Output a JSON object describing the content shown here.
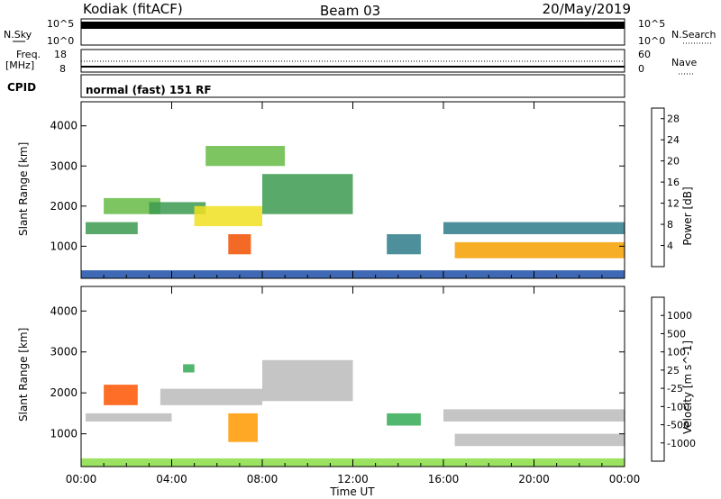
{
  "header": {
    "title": "Kodiak (fitACF)",
    "beam": "Beam 03",
    "date": "20/May/2019"
  },
  "status_panels": {
    "nsky": {
      "label": "N.Sky",
      "left_ticks": [
        "10^5",
        "10^0"
      ],
      "right_label": "N.Search",
      "right_ticks": [
        "10^5",
        "10^0"
      ]
    },
    "freq": {
      "label_line1": "Freq.",
      "label_line2": "[MHz]",
      "left_ticks": [
        "18",
        "8"
      ],
      "right_label": "Nave",
      "right_ticks": [
        "60",
        "0"
      ]
    },
    "cpid": {
      "label": "CPID",
      "value": "normal (fast) 151 RF"
    }
  },
  "colors": {
    "power_scale": [
      "#0000ff",
      "#1e4fa8",
      "#2e7d8a",
      "#3c9a50",
      "#66bb44",
      "#f0e020",
      "#f5a000",
      "#f05000",
      "#e00000"
    ],
    "velocity_scale": [
      "#ff0000",
      "#ff5500",
      "#ff9900",
      "#ffcc00",
      "#bbbbbb",
      "#bbbbbb",
      "#88dd44",
      "#33aa55",
      "#3366aa",
      "#3333cc"
    ]
  },
  "chart_data": [
    {
      "type": "heatmap",
      "title": "Power",
      "ylabel": "Slant Range [km]",
      "xlabel": "Time UT",
      "x_ticks": [
        "00:00",
        "04:00",
        "08:00",
        "12:00",
        "16:00",
        "20:00",
        "00:00"
      ],
      "x_range_hours": [
        0,
        24
      ],
      "y_ticks": [
        1000,
        2000,
        3000,
        4000
      ],
      "ylim": [
        200,
        4600
      ],
      "colorbar": {
        "label": "Power [dB]",
        "ticks": [
          "4",
          "8",
          "12",
          "16",
          "20",
          "24",
          "28"
        ],
        "range": [
          0,
          30
        ]
      },
      "regions": [
        {
          "t0": 0.2,
          "t1": 2.5,
          "r0": 1300,
          "r1": 1600,
          "value": 10
        },
        {
          "t0": 1.0,
          "t1": 3.5,
          "r0": 1800,
          "r1": 2200,
          "value": 16
        },
        {
          "t0": 3.0,
          "t1": 5.5,
          "r0": 1800,
          "r1": 2100,
          "value": 12
        },
        {
          "t0": 5.0,
          "t1": 8.0,
          "r0": 1500,
          "r1": 2000,
          "value": 18
        },
        {
          "t0": 6.5,
          "t1": 7.5,
          "r0": 800,
          "r1": 1300,
          "value": 24
        },
        {
          "t0": 8.0,
          "t1": 12.0,
          "r0": 1800,
          "r1": 2800,
          "value": 10
        },
        {
          "t0": 5.5,
          "t1": 9.0,
          "r0": 3000,
          "r1": 3500,
          "value": 14
        },
        {
          "t0": 13.5,
          "t1": 15.0,
          "r0": 800,
          "r1": 1300,
          "value": 8
        },
        {
          "t0": 16.0,
          "t1": 24.0,
          "r0": 1300,
          "r1": 1600,
          "value": 8
        },
        {
          "t0": 16.5,
          "t1": 24.0,
          "r0": 700,
          "r1": 1100,
          "value": 20
        },
        {
          "t0": 0.0,
          "t1": 24.0,
          "r0": 200,
          "r1": 400,
          "value": 6
        }
      ]
    },
    {
      "type": "heatmap",
      "title": "Velocity",
      "ylabel": "Slant Range [km]",
      "xlabel": "Time UT",
      "x_ticks": [
        "00:00",
        "04:00",
        "08:00",
        "12:00",
        "16:00",
        "20:00",
        "00:00"
      ],
      "x_range_hours": [
        0,
        24
      ],
      "y_ticks": [
        1000,
        2000,
        3000,
        4000
      ],
      "ylim": [
        200,
        4600
      ],
      "colorbar": {
        "label": "Velocity [m s^-1]",
        "ticks": [
          "1000",
          "500",
          "100",
          "25",
          "-25",
          "-100",
          "-500",
          "-1000"
        ]
      },
      "regions": [
        {
          "t0": 1.0,
          "t1": 2.5,
          "r0": 1700,
          "r1": 2200,
          "value": -500
        },
        {
          "t0": 0.2,
          "t1": 4.0,
          "r0": 1300,
          "r1": 1500,
          "value": 0
        },
        {
          "t0": 3.5,
          "t1": 8.0,
          "r0": 1700,
          "r1": 2100,
          "value": 0
        },
        {
          "t0": 6.5,
          "t1": 7.8,
          "r0": 800,
          "r1": 1500,
          "value": -200
        },
        {
          "t0": 4.5,
          "t1": 5.0,
          "r0": 2500,
          "r1": 2700,
          "value": 150
        },
        {
          "t0": 8.0,
          "t1": 12.0,
          "r0": 1800,
          "r1": 2800,
          "value": 0
        },
        {
          "t0": 13.5,
          "t1": 15.0,
          "r0": 1200,
          "r1": 1500,
          "value": 100
        },
        {
          "t0": 16.0,
          "t1": 24.0,
          "r0": 1300,
          "r1": 1600,
          "value": 0
        },
        {
          "t0": 16.5,
          "t1": 24.0,
          "r0": 700,
          "r1": 1000,
          "value": 0
        },
        {
          "t0": 0.0,
          "t1": 24.0,
          "r0": 200,
          "r1": 400,
          "value": 50
        }
      ]
    }
  ]
}
